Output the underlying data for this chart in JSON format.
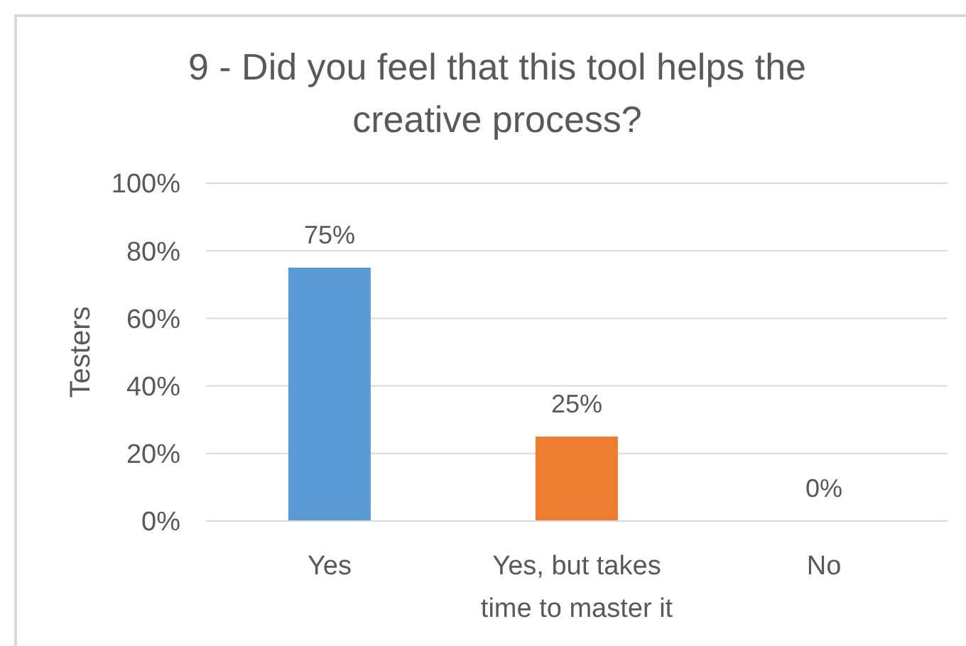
{
  "chart_data": {
    "type": "bar",
    "title": "9 - Did you feel that this tool helps the creative process?",
    "ylabel": "Testers",
    "categories": [
      "Yes",
      "Yes, but takes time to master it",
      "No"
    ],
    "values": [
      75,
      25,
      0
    ],
    "colors": [
      "#5b9bd5",
      "#ed7d31",
      "#a5a5a5"
    ],
    "value_labels": [
      "75%",
      "25%",
      "0%"
    ],
    "ylim": [
      0,
      100
    ],
    "yticks": [
      {
        "value": 0,
        "label": "0%"
      },
      {
        "value": 20,
        "label": "20%"
      },
      {
        "value": 40,
        "label": "40%"
      },
      {
        "value": 60,
        "label": "60%"
      },
      {
        "value": 80,
        "label": "80%"
      },
      {
        "value": 100,
        "label": "100%"
      }
    ],
    "grid": "y"
  }
}
